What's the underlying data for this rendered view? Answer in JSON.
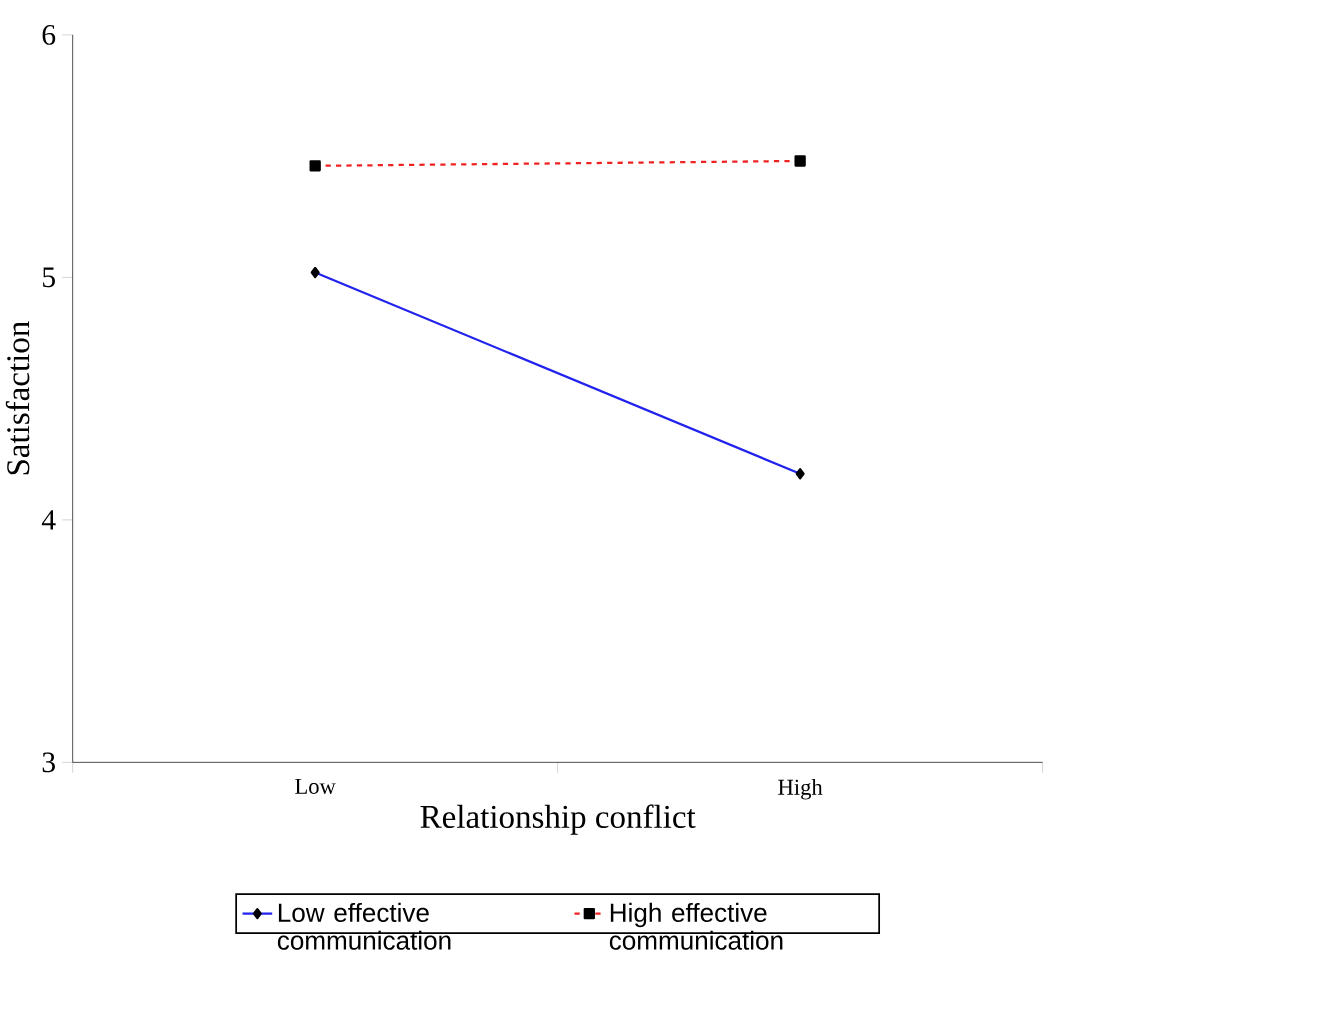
{
  "chart_data": {
    "type": "line",
    "xlabel": "Relationship conflict",
    "ylabel": "Satisfaction",
    "categories": [
      "Low",
      "High"
    ],
    "ylim": [
      3,
      6
    ],
    "yticks": [
      3,
      4,
      5,
      6
    ],
    "legend": "bottom",
    "grid": false,
    "series": [
      {
        "name": "Low effective communication",
        "color": "#2222ee",
        "values": [
          5.02,
          4.19
        ],
        "marker": "diamond",
        "line_style": "solid"
      },
      {
        "name": "High effective communication",
        "color": "#ee2222",
        "values": [
          5.46,
          5.48
        ],
        "marker": "square",
        "line_style": "dashed"
      }
    ]
  }
}
